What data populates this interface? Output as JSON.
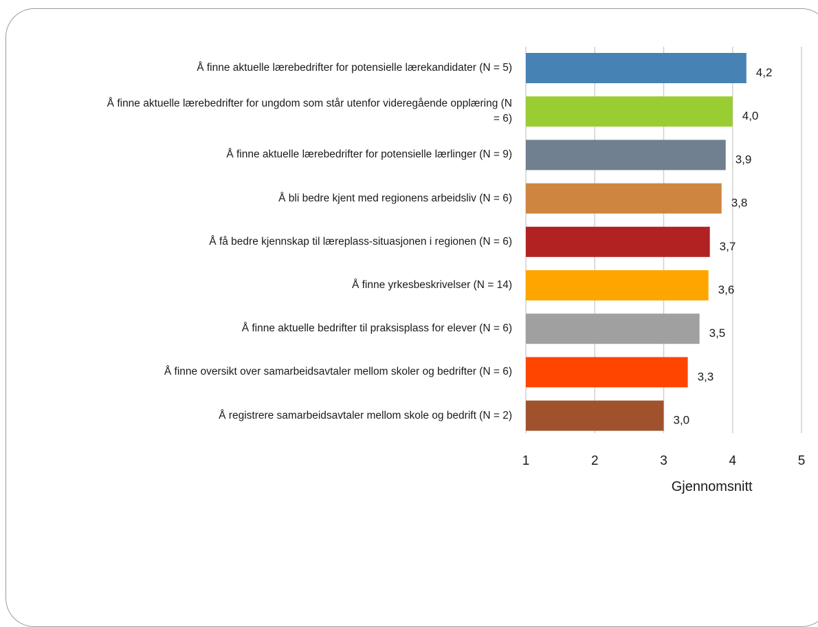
{
  "chart_data": {
    "type": "bar",
    "orientation": "horizontal",
    "categories": [
      "Å finne aktuelle lærebedrifter for potensielle lærekandidater (N = 5)",
      "Å finne aktuelle lærebedrifter for ungdom som står utenfor videregående opplæring (N = 6)",
      "Å finne aktuelle lærebedrifter for potensielle lærlinger (N = 9)",
      "Å bli bedre kjent med regionens arbeidsliv (N = 6)",
      "Å få bedre kjennskap til læreplass-situasjonen i regionen (N = 6)",
      "Å finne yrkesbeskrivelser (N = 14)",
      "Å finne aktuelle bedrifter til praksisplass for elever (N = 6)",
      "Å finne oversikt over samarbeidsavtaler mellom skoler og bedrifter (N = 6)",
      "Å registrere samarbeidsavtaler mellom skole og bedrift (N = 2)"
    ],
    "values": [
      4.2,
      4.0,
      3.9,
      3.84,
      3.67,
      3.65,
      3.52,
      3.35,
      3.0
    ],
    "value_labels": [
      "4,2",
      "4,0",
      "3,9",
      "3,8",
      "3,7",
      "3,6",
      "3,5",
      "3,3",
      "3,0"
    ],
    "colors": [
      "#4682b4",
      "#9acd32",
      "#708090",
      "#cd853f",
      "#b22222",
      "#ffa500",
      "#a0a0a0",
      "#ff4500",
      "#a0522d"
    ],
    "xlabel": "Gjennomsnitt",
    "xlim": [
      1,
      5
    ],
    "xticks": [
      "1",
      "2",
      "3",
      "4",
      "5"
    ],
    "grid": true
  }
}
